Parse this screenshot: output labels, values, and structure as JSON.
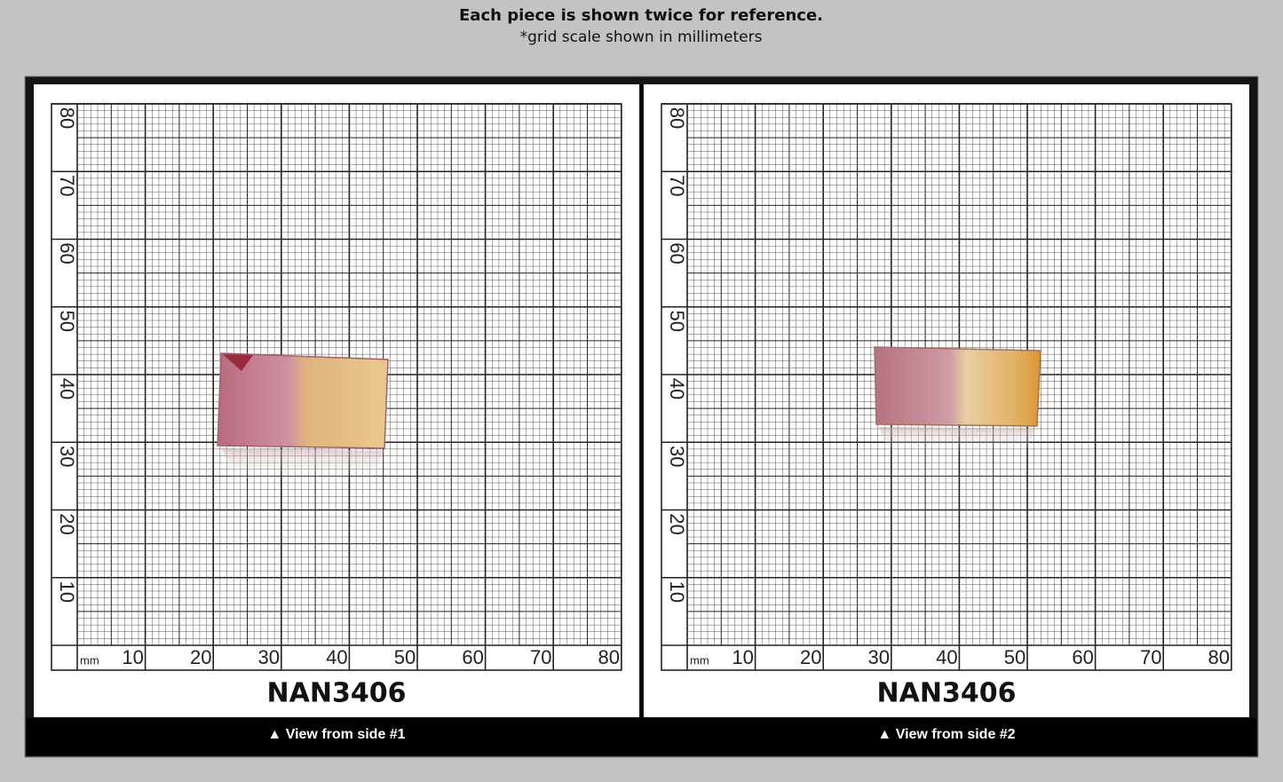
{
  "header": {
    "title": "Each piece is shown twice for reference.",
    "subtitle": "*grid scale shown in millimeters"
  },
  "grid": {
    "unit": "mm",
    "x_labels": [
      10,
      20,
      30,
      40,
      50,
      60,
      70,
      80
    ],
    "y_labels": [
      10,
      20,
      30,
      40,
      50,
      60,
      70,
      80
    ]
  },
  "panels": [
    {
      "label": "NAN3406",
      "caption": "▲ View from side #1"
    },
    {
      "label": "NAN3406",
      "caption": "▲ View from side #2"
    }
  ]
}
